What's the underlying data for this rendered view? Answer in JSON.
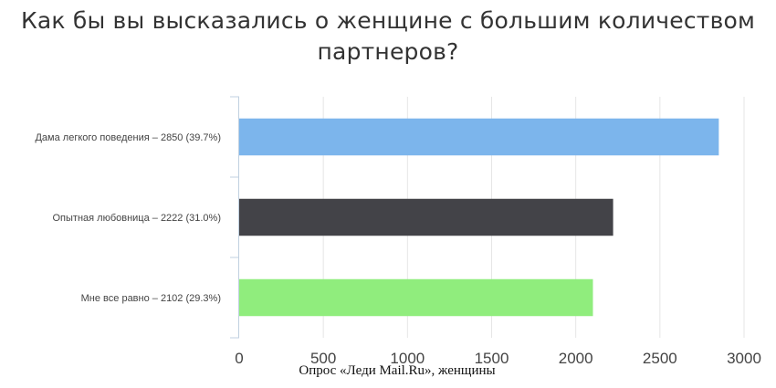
{
  "chart_data": {
    "type": "bar",
    "orientation": "horizontal",
    "title": "Как бы вы высказались о женщине с большим количеством партнеров?",
    "categories": [
      "Дама легкого поведения – 2850 (39.7%)",
      "Опытная любовница – 2222 (31.0%)",
      "Мне все равно – 2102 (29.3%)"
    ],
    "values": [
      2850,
      2222,
      2102
    ],
    "colors": [
      "#7cb5ec",
      "#434348",
      "#90ed7d"
    ],
    "xlim": [
      0,
      3000
    ],
    "x_ticks": [
      0,
      500,
      1000,
      1500,
      2000,
      2500,
      3000
    ],
    "grid": true,
    "legend": "none"
  },
  "footer": {
    "caption": "Опрос «Леди Mail.Ru», женщины"
  }
}
